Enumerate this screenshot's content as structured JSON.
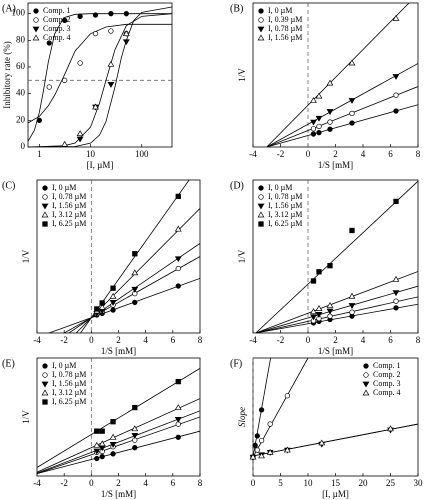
{
  "chart_data": [
    {
      "type": "scatter",
      "panel_label": "(A)",
      "xlabel": "[I, µM]",
      "ylabel": "Inhibitory rate (%)",
      "xscale": "log",
      "xlim": [
        0.6,
        390
      ],
      "xticks": [
        1,
        10,
        100
      ],
      "ylim": [
        0,
        108
      ],
      "yticks": [
        0,
        20,
        40,
        60,
        80,
        100
      ],
      "hline": 50,
      "legend_loc": "upper left",
      "series": [
        {
          "name": "Comp. 1",
          "marker": "filled-circle",
          "x": [
            1,
            1.56,
            3.12,
            6.25,
            12.5,
            25,
            50
          ],
          "values": [
            20,
            78,
            95,
            98,
            99,
            100,
            100
          ],
          "fit_x": [
            0.6,
            0.8,
            1,
            1.2,
            1.5,
            2,
            3,
            5,
            10,
            390
          ],
          "fit_y": [
            4.3,
            12.5,
            26,
            42,
            64,
            85,
            97,
            99.5,
            100,
            100
          ]
        },
        {
          "name": "Comp. 2",
          "marker": "open-circle",
          "x": [
            1.56,
            3.12,
            6.25,
            12.5,
            25,
            50
          ],
          "values": [
            45,
            50,
            63,
            85,
            87,
            85
          ],
          "fit_x": [
            0.6,
            1,
            1.5,
            2,
            3,
            5,
            10,
            20,
            50,
            390
          ],
          "fit_y": [
            18,
            23,
            31,
            39,
            53,
            72,
            85,
            90,
            92,
            92
          ]
        },
        {
          "name": "Comp. 3",
          "marker": "filled-triangle-down",
          "x": [
            6.25,
            12.5,
            25,
            50
          ],
          "values": [
            6,
            30,
            47,
            79
          ],
          "fit_x": [
            0.6,
            5,
            10,
            15,
            20,
            30,
            40,
            50,
            70,
            100,
            390
          ],
          "fit_y": [
            0,
            0.4,
            2.9,
            9,
            19,
            45,
            67,
            80,
            95,
            101,
            105
          ]
        },
        {
          "name": "Comp. 4",
          "marker": "open-triangle-up",
          "x": [
            3.12,
            6.25,
            12.5,
            25,
            50
          ],
          "values": [
            2,
            10,
            30,
            62,
            85
          ],
          "fit_x": [
            0.6,
            3,
            5,
            10,
            15,
            20,
            30,
            50,
            100,
            390
          ],
          "fit_y": [
            0,
            0.9,
            3,
            15,
            33,
            50,
            73,
            91,
            98,
            100
          ]
        }
      ]
    },
    {
      "type": "scatter",
      "panel_label": "(B)",
      "xlabel": "1/S [mM]",
      "ylabel": "1/V",
      "xlim": [
        -4,
        8
      ],
      "xticks": [
        -4,
        -2,
        0,
        2,
        4,
        6,
        8
      ],
      "ylim": [
        0,
        300
      ],
      "vline": 0,
      "legend_loc": "upper left",
      "series": [
        {
          "name": "I, 0 µM",
          "marker": "filled-circle",
          "x": [
            0.4,
            0.8,
            1.6,
            3.2,
            6.4
          ],
          "values": [
            27,
            30,
            37,
            50,
            75
          ],
          "fit_x": [
            -3,
            8
          ],
          "fit_y": [
            0,
            88
          ]
        },
        {
          "name": "I, 0.39 µM",
          "marker": "open-circle",
          "x": [
            0.4,
            0.8,
            1.6,
            3.2,
            6.4
          ],
          "values": [
            38,
            43,
            52,
            70,
            108
          ],
          "fit_x": [
            -3,
            8
          ],
          "fit_y": [
            0,
            126
          ]
        },
        {
          "name": "I, 0.78 µM",
          "marker": "filled-triangle-down",
          "x": [
            0.4,
            0.8,
            1.6,
            3.2,
            6.4
          ],
          "values": [
            52,
            60,
            74,
            97,
            147
          ],
          "fit_x": [
            -3,
            8
          ],
          "fit_y": [
            0,
            174
          ]
        },
        {
          "name": "I, 1.56 µM",
          "marker": "open-triangle-up",
          "x": [
            0.4,
            0.8,
            1.6,
            3.2,
            6.4
          ],
          "values": [
            97,
            106,
            133,
            175,
            268
          ],
          "fit_x": [
            -3,
            8
          ],
          "fit_y": [
            0,
            319
          ]
        }
      ]
    },
    {
      "type": "scatter",
      "panel_label": "(C)",
      "xlabel": "1/S [mM]",
      "ylabel": "1/V",
      "xlim": [
        -4,
        8
      ],
      "xticks": [
        -4,
        -2,
        0,
        2,
        4,
        6,
        8
      ],
      "ylim": [
        0,
        280
      ],
      "vline": 0,
      "legend_loc": "upper left",
      "series": [
        {
          "name": "I, 0 µM",
          "marker": "filled-circle",
          "x": [
            0.4,
            0.8,
            1.6,
            3.2,
            6.4
          ],
          "values": [
            33,
            36,
            42,
            56,
            86
          ],
          "fit_x": [
            -4,
            8
          ],
          "fit_y": [
            -8,
            100
          ]
        },
        {
          "name": "I, 0.78 µM",
          "marker": "open-circle",
          "x": [
            0.4,
            0.8,
            1.6,
            3.2,
            6.4
          ],
          "values": [
            35,
            40,
            51,
            72,
            118
          ],
          "fit_x": [
            -4,
            8
          ],
          "fit_y": [
            -28,
            140
          ]
        },
        {
          "name": "I, 1.56 µM",
          "marker": "filled-triangle-down",
          "x": [
            0.4,
            0.8,
            1.6,
            3.2,
            6.4
          ],
          "values": [
            36,
            41,
            56,
            80,
            136
          ],
          "fit_x": [
            -4,
            8
          ],
          "fit_y": [
            -40,
            164
          ]
        },
        {
          "name": "I, 3.12 µM",
          "marker": "open-triangle-up",
          "x": [
            0.4,
            0.8,
            1.6,
            3.2,
            6.4
          ],
          "values": [
            40,
            47,
            67,
            110,
            190
          ],
          "fit_x": [
            -4,
            8
          ],
          "fit_y": [
            -72,
            228
          ]
        },
        {
          "name": "I, 6.25 µM",
          "marker": "filled-square",
          "x": [
            0.4,
            0.8,
            1.6,
            3.2,
            6.4
          ],
          "values": [
            44,
            55,
            82,
            145,
            250
          ],
          "fit_x": [
            -4,
            8
          ],
          "fit_y": [
            -112,
            308
          ]
        }
      ]
    },
    {
      "type": "scatter",
      "panel_label": "(D)",
      "xlabel": "1/S [mM]",
      "ylabel": "1/V",
      "xlim": [
        -4,
        8
      ],
      "xticks": [
        -4,
        -2,
        0,
        2,
        4,
        6,
        8
      ],
      "ylim": [
        0,
        500
      ],
      "vline": 0,
      "legend_loc": "upper left",
      "series": [
        {
          "name": "I, 0 µM",
          "marker": "filled-circle",
          "x": [
            0.4,
            0.8,
            1.6,
            3.2,
            6.4
          ],
          "values": [
            33,
            38,
            44,
            55,
            82
          ],
          "fit_x": [
            -3.8,
            8
          ],
          "fit_y": [
            0,
            94
          ]
        },
        {
          "name": "I, 0.78 µM",
          "marker": "open-circle",
          "x": [
            0.4,
            0.8,
            1.6,
            3.2,
            6.4
          ],
          "values": [
            40,
            47,
            55,
            68,
            104
          ],
          "fit_x": [
            -3.8,
            8
          ],
          "fit_y": [
            0,
            118
          ]
        },
        {
          "name": "I, 1.56 µM",
          "marker": "filled-triangle-down",
          "x": [
            0.4,
            0.8,
            1.6,
            3.2,
            6.4
          ],
          "values": [
            53,
            61,
            72,
            90,
            132
          ],
          "fit_x": [
            -3.8,
            8
          ],
          "fit_y": [
            0,
            153
          ]
        },
        {
          "name": "I, 3.12 µM",
          "marker": "open-triangle-up",
          "x": [
            0.4,
            0.8,
            1.6,
            3.2,
            6.4
          ],
          "values": [
            70,
            80,
            90,
            120,
            175
          ],
          "fit_x": [
            -3.8,
            8
          ],
          "fit_y": [
            0,
            201
          ]
        },
        {
          "name": "I, 6.25 µM",
          "marker": "filled-square",
          "x": [
            0.4,
            0.8,
            1.6,
            3.2,
            6.4
          ],
          "values": [
            170,
            200,
            220,
            335,
            430
          ],
          "fit_x": [
            -3.8,
            8
          ],
          "fit_y": [
            0,
            496
          ]
        }
      ]
    },
    {
      "type": "scatter",
      "panel_label": "(E)",
      "xlabel": "1/S [mM]",
      "ylabel": "1/V",
      "xlim": [
        -4,
        8
      ],
      "xticks": [
        -4,
        -2,
        0,
        2,
        4,
        6,
        8
      ],
      "ylim": [
        0,
        250
      ],
      "vline": 0,
      "legend_loc": "upper left",
      "series": [
        {
          "name": "I, 0 µM",
          "marker": "filled-circle",
          "x": [
            0.4,
            0.8,
            1.6,
            3.2,
            6.4
          ],
          "values": [
            37,
            41,
            47,
            60,
            82
          ],
          "fit_x": [
            -4,
            8
          ],
          "fit_y": [
            5,
            95
          ]
        },
        {
          "name": "I, 0.78 µM",
          "marker": "open-circle",
          "x": [
            0.4,
            0.8,
            1.6,
            3.2,
            6.4
          ],
          "values": [
            50,
            52,
            62,
            76,
            110
          ],
          "fit_x": [
            -4,
            8
          ],
          "fit_y": [
            5,
            125
          ]
        },
        {
          "name": "I, 1.56 µM",
          "marker": "filled-triangle-down",
          "x": [
            0.4,
            0.8,
            1.6,
            3.2,
            6.4
          ],
          "values": [
            53,
            60,
            67,
            86,
            120
          ],
          "fit_x": [
            -4,
            8
          ],
          "fit_y": [
            6,
            138
          ]
        },
        {
          "name": "I, 3.12 µM",
          "marker": "open-triangle-up",
          "x": [
            0.4,
            0.8,
            1.6,
            3.2,
            6.4
          ],
          "values": [
            65,
            68,
            82,
            100,
            145
          ],
          "fit_x": [
            -4,
            8
          ],
          "fit_y": [
            8,
            164
          ]
        },
        {
          "name": "I, 6.25 µM",
          "marker": "filled-square",
          "x": [
            0.4,
            0.8,
            1.6,
            3.2,
            6.4
          ],
          "values": [
            95,
            95,
            115,
            145,
            200
          ],
          "fit_x": [
            -4,
            8
          ],
          "fit_y": [
            18,
            228
          ]
        }
      ]
    },
    {
      "type": "scatter",
      "panel_label": "(F)",
      "xlabel": "[I, µM]",
      "ylabel": "Slope",
      "xlim": [
        0,
        30
      ],
      "xticks": [
        0,
        5,
        10,
        15,
        20,
        25,
        30
      ],
      "ylim": [
        0,
        50
      ],
      "vline": 0,
      "legend_loc": "upper right",
      "series": [
        {
          "name": "Comp. 1",
          "marker": "filled-circle",
          "x": [
            0,
            0.39,
            0.78,
            1.56
          ],
          "values": [
            8,
            13,
            17,
            28
          ],
          "fit_x": [
            0,
            3.2
          ],
          "fit_y": [
            8,
            50
          ]
        },
        {
          "name": "Comp. 2",
          "marker": "open-circle",
          "x": [
            0,
            0.78,
            1.56,
            3.12,
            6.25
          ],
          "values": [
            8,
            11,
            15,
            22,
            34
          ],
          "fit_x": [
            0,
            10
          ],
          "fit_y": [
            8,
            50
          ]
        },
        {
          "name": "Comp. 3",
          "marker": "filled-triangle-down",
          "x": [
            0,
            1.56,
            3.12,
            6.25,
            12.5,
            25
          ],
          "values": [
            8,
            9,
            10,
            11,
            13.5,
            19.5
          ],
          "fit_x": [
            0,
            30
          ],
          "fit_y": [
            8.5,
            22
          ]
        },
        {
          "name": "Comp. 4",
          "marker": "open-triangle-up",
          "x": [
            0,
            1.56,
            3.12,
            6.25,
            12.5,
            25
          ],
          "values": [
            8,
            8.5,
            10,
            11,
            14,
            20
          ],
          "fit_x": [
            0,
            30
          ],
          "fit_y": [
            8.5,
            22
          ]
        }
      ]
    }
  ]
}
